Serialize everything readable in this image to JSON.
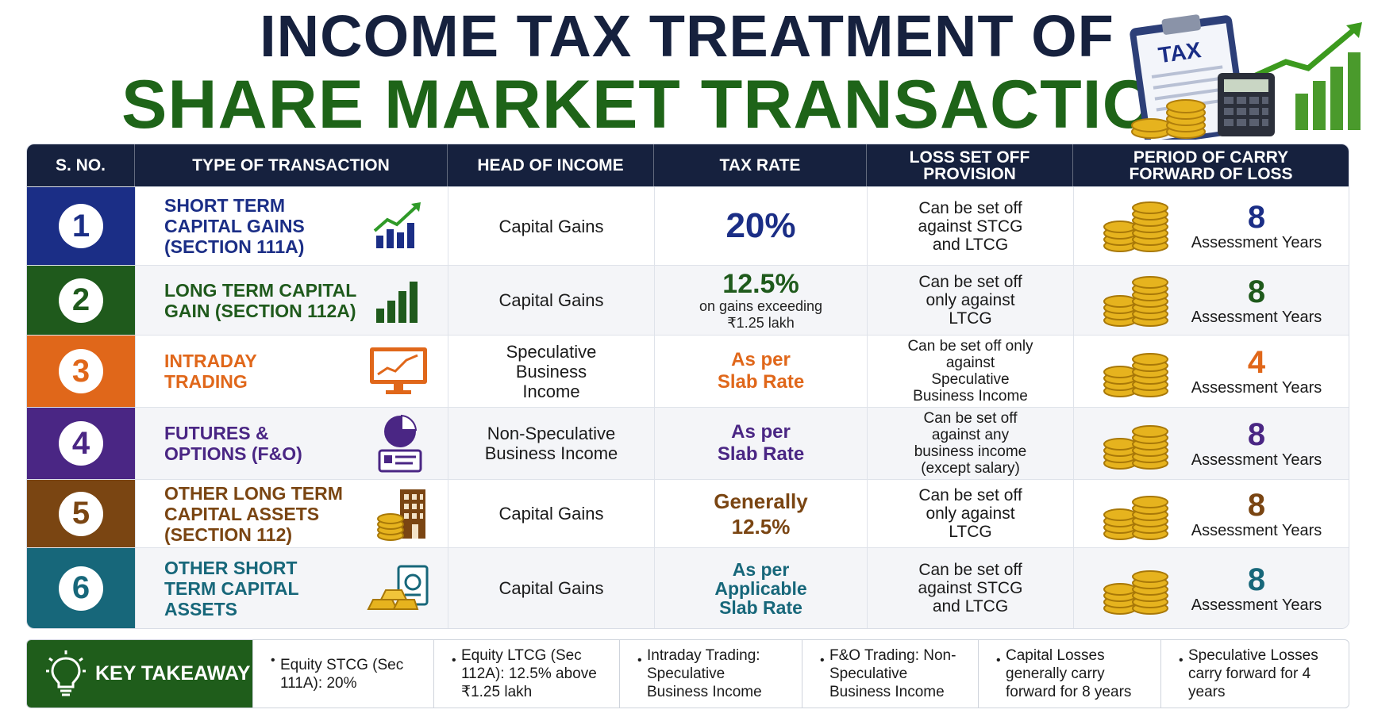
{
  "title": {
    "line1": "INCOME TAX TREATMENT OF",
    "line2": "SHARE MARKET TRANSACTIONS",
    "badge": "TAX"
  },
  "headers": {
    "sno": "S. NO.",
    "type": "TYPE OF TRANSACTION",
    "head": "HEAD OF INCOME",
    "rate": "TAX RATE",
    "loss": "LOSS SET OFF PROVISION",
    "carry": "PERIOD OF CARRY FORWARD OF LOSS"
  },
  "colors": {
    "navy": "#16213e",
    "green": "#1e6418",
    "row1": "#1b2e86",
    "row2": "#1f5a1c",
    "row3": "#e0671a",
    "row4": "#4a2684",
    "row5": "#7a4512",
    "row6": "#17677a",
    "gold": "#e6b31e"
  },
  "rows": [
    {
      "no": "1",
      "type": "SHORT TERM CAPITAL GAINS (SECTION 111A)",
      "icon": "growth-chart-icon",
      "head": "Capital Gains",
      "rate": "20%",
      "rate_note": "",
      "loss": "Can be set off against STCG and LTCG",
      "carry_years": "8",
      "carry_label": "Assessment Years"
    },
    {
      "no": "2",
      "type": "LONG TERM CAPITAL GAIN (SECTION 112A)",
      "icon": "bar-chart-icon",
      "head": "Capital Gains",
      "rate": "12.5%",
      "rate_note": "on gains exceeding ₹1.25 lakh",
      "loss": "Can be set off only against LTCG",
      "carry_years": "8",
      "carry_label": "Assessment Years"
    },
    {
      "no": "3",
      "type": "INTRADAY TRADING",
      "icon": "trading-monitor-icon",
      "head": "Speculative Business Income",
      "rate": "As per Slab Rate",
      "rate_note": "",
      "loss": "Can be set off only against Speculative Business Income",
      "carry_years": "4",
      "carry_label": "Assessment Years"
    },
    {
      "no": "4",
      "type": "FUTURES & OPTIONS (F&O)",
      "icon": "pie-chart-document-icon",
      "head": "Non-Speculative Business Income",
      "rate": "As per Slab Rate",
      "rate_note": "",
      "loss": "Can be set off against any business income (except salary)",
      "carry_years": "8",
      "carry_label": "Assessment Years"
    },
    {
      "no": "5",
      "type": "OTHER LONG TERM CAPITAL ASSETS (SECTION 112)",
      "icon": "building-coins-icon",
      "head": "Capital Gains",
      "rate": "Generally 12.5%",
      "rate_note": "",
      "loss": "Can be set off only against LTCG",
      "carry_years": "8",
      "carry_label": "Assessment Years"
    },
    {
      "no": "6",
      "type": "OTHER SHORT TERM CAPITAL ASSETS",
      "icon": "gold-bars-document-icon",
      "head": "Capital Gains",
      "rate": "As per Applicable Slab Rate",
      "rate_note": "",
      "loss": "Can be set off against STCG and LTCG",
      "carry_years": "8",
      "carry_label": "Assessment Years"
    }
  ],
  "takeaway": {
    "title": "KEY TAKEAWAY",
    "bullet": "•",
    "items": [
      "Equity STCG (Sec 111A): 20%",
      "Equity LTCG (Sec 112A): 12.5% above ₹1.25 lakh",
      "Intraday Trading: Speculative Business Income",
      "F&O Trading: Non-Speculative Business Income",
      "Capital Losses generally carry forward for 8 years",
      "Speculative Losses carry forward for 4 years"
    ]
  }
}
